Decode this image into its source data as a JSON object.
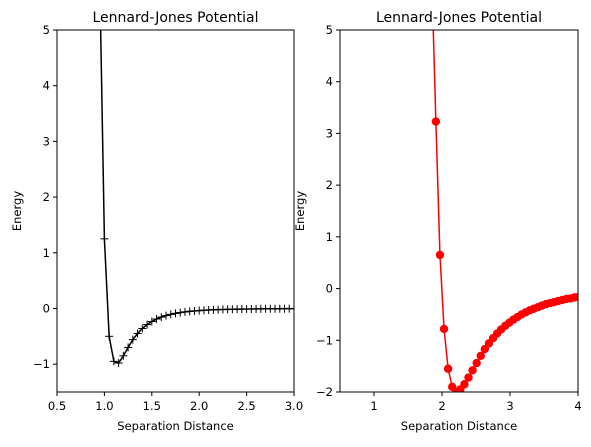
{
  "chart_data": [
    {
      "type": "line",
      "title": "Lennard-Jones Potential",
      "xlabel": "Separation Distance",
      "ylabel": "Energy",
      "xlim": [
        0.5,
        3.0
      ],
      "ylim": [
        -1.5,
        5
      ],
      "x_ticks": [
        0.5,
        1.0,
        1.5,
        2.0,
        2.5,
        3.0
      ],
      "x_tick_labels": [
        "0.5",
        "1.0",
        "1.5",
        "2.0",
        "2.5",
        "3.0"
      ],
      "y_ticks": [
        -1,
        0,
        1,
        2,
        3,
        4,
        5
      ],
      "y_tick_labels": [
        "−1",
        "0",
        "1",
        "2",
        "3",
        "4",
        "5"
      ],
      "grid": false,
      "line_color": "#000000",
      "marker": "plus",
      "series": [
        {
          "x": [
            0.95,
            1.0,
            1.05,
            1.1,
            1.15,
            1.2,
            1.25,
            1.3,
            1.35,
            1.4,
            1.45,
            1.5,
            1.55,
            1.6,
            1.65,
            1.7,
            1.75,
            1.8,
            1.85,
            1.9,
            1.95,
            2.0,
            2.05,
            2.1,
            2.15,
            2.2,
            2.25,
            2.3,
            2.35,
            2.4,
            2.45,
            2.5,
            2.55,
            2.6,
            2.65,
            2.7,
            2.75,
            2.8,
            2.85,
            2.9,
            2.95,
            3.0
          ],
          "y": [
            6.0,
            1.25,
            -0.5,
            -0.95,
            -0.98,
            -0.85,
            -0.7,
            -0.56,
            -0.45,
            -0.36,
            -0.29,
            -0.235,
            -0.19,
            -0.155,
            -0.128,
            -0.106,
            -0.088,
            -0.074,
            -0.062,
            -0.052,
            -0.044,
            -0.038,
            -0.032,
            -0.028,
            -0.024,
            -0.021,
            -0.018,
            -0.016,
            -0.014,
            -0.012,
            -0.011,
            -0.01,
            -0.009,
            -0.008,
            -0.007,
            -0.006,
            -0.0055,
            -0.005,
            -0.0045,
            -0.004,
            -0.0036,
            -0.0032
          ]
        }
      ]
    },
    {
      "type": "line",
      "title": "Lennard-Jones Potential",
      "xlabel": "Separation Distance",
      "ylabel": "Energy",
      "xlim": [
        0.5,
        4.0
      ],
      "ylim": [
        -2,
        5
      ],
      "x_ticks": [
        1,
        2,
        3,
        4
      ],
      "x_tick_labels": [
        "1",
        "2",
        "3",
        "4"
      ],
      "y_ticks": [
        -2,
        -1,
        0,
        1,
        2,
        3,
        4,
        5
      ],
      "y_tick_labels": [
        "−2",
        "−1",
        "0",
        "1",
        "2",
        "3",
        "4",
        "5"
      ],
      "grid": false,
      "line_color": "#ff0000",
      "marker": "circle",
      "series": [
        {
          "x": [
            1.85,
            1.91,
            1.97,
            2.03,
            2.09,
            2.15,
            2.21,
            2.27,
            2.33,
            2.39,
            2.45,
            2.51,
            2.57,
            2.63,
            2.69,
            2.75,
            2.81,
            2.87,
            2.93,
            2.99,
            3.05,
            3.11,
            3.17,
            3.23,
            3.29,
            3.35,
            3.41,
            3.47,
            3.53,
            3.59,
            3.65,
            3.71,
            3.77,
            3.83,
            3.89,
            3.95,
            4.01
          ],
          "y": [
            6.0,
            3.23,
            0.65,
            -0.78,
            -1.55,
            -1.9,
            -2.0,
            -1.95,
            -1.85,
            -1.72,
            -1.58,
            -1.44,
            -1.3,
            -1.17,
            -1.06,
            -0.96,
            -0.87,
            -0.79,
            -0.72,
            -0.66,
            -0.6,
            -0.55,
            -0.5,
            -0.46,
            -0.42,
            -0.39,
            -0.36,
            -0.33,
            -0.3,
            -0.28,
            -0.26,
            -0.24,
            -0.22,
            -0.2,
            -0.19,
            -0.17,
            -0.16
          ]
        }
      ]
    }
  ]
}
